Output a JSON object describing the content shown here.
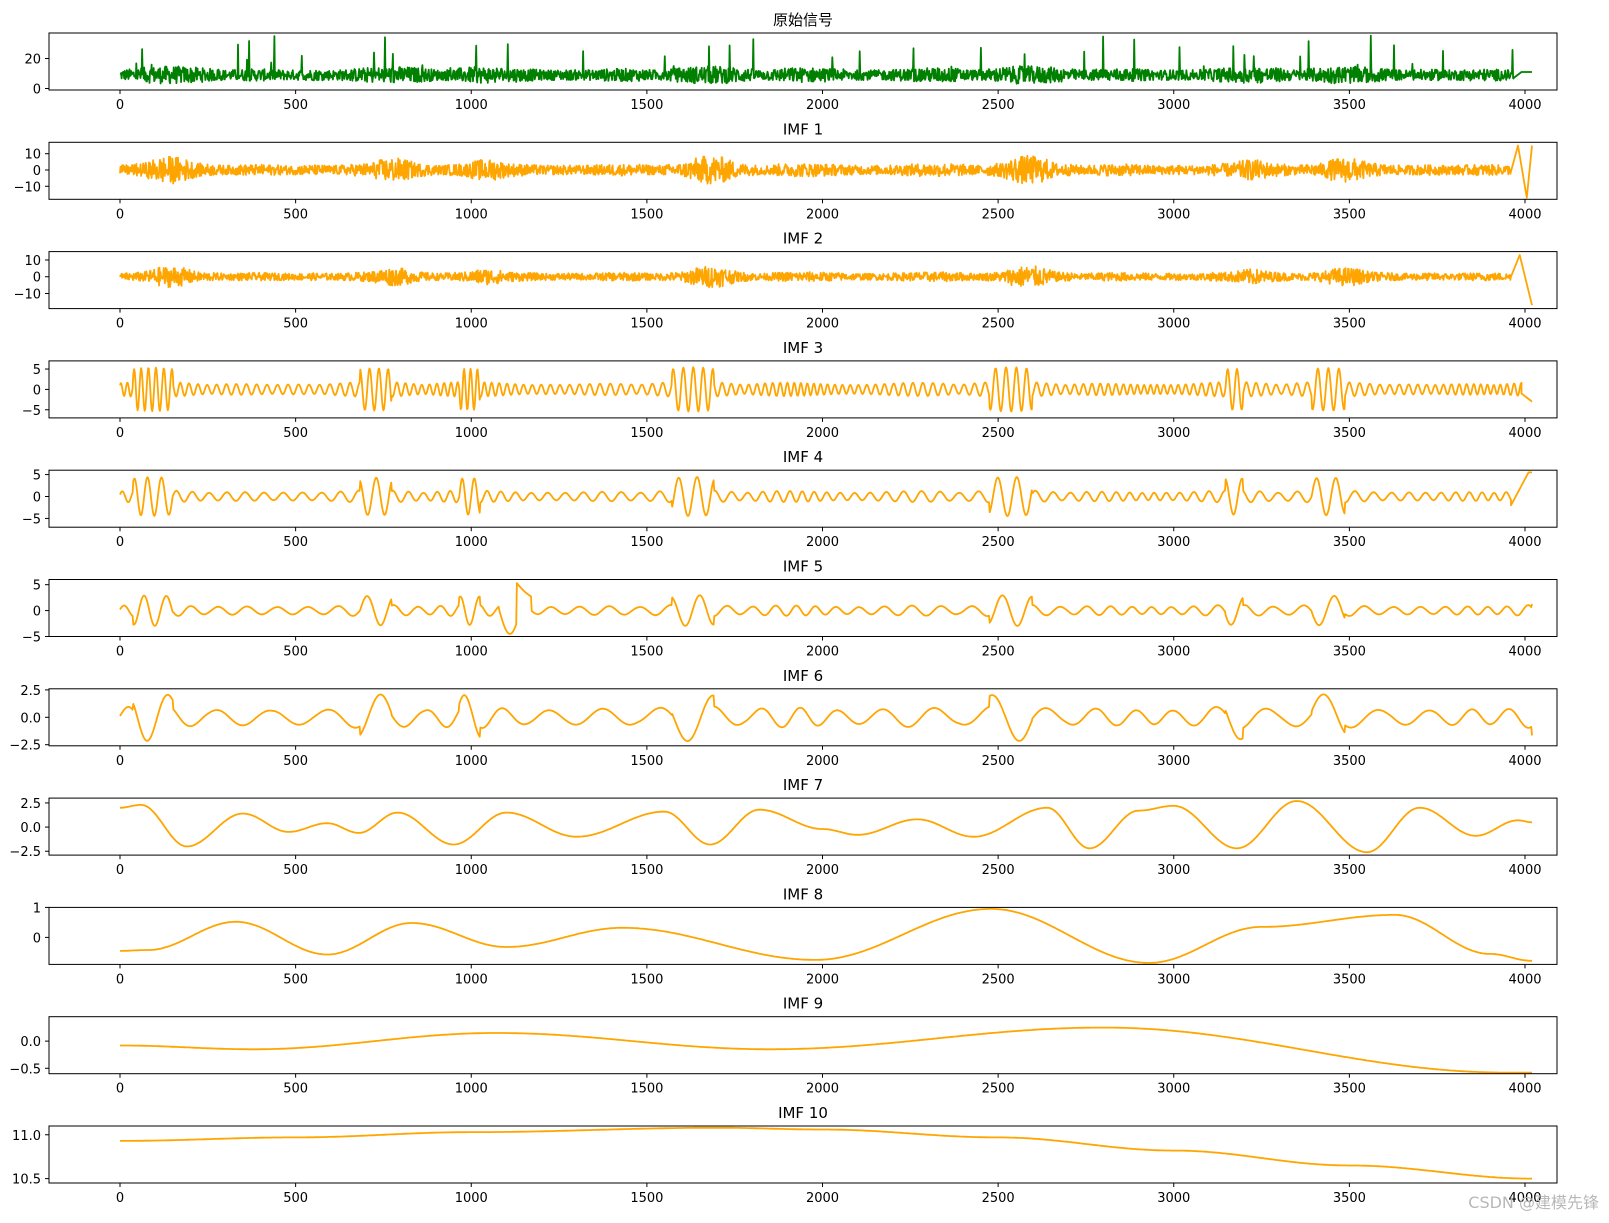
{
  "watermark": "CSDN @建模先锋",
  "chart_data": [
    {
      "type": "line",
      "title": "原始信号",
      "color": "#008000",
      "x_range": [
        0,
        4020
      ],
      "ylim": [
        -1,
        37
      ],
      "yticks": [
        0,
        20
      ],
      "ytick_labels": [
        "0",
        "20"
      ],
      "xticks": [
        0,
        500,
        1000,
        1500,
        2000,
        2500,
        3000,
        3500,
        4000
      ],
      "xtick_labels": [
        "0",
        "500",
        "1000",
        "1500",
        "2000",
        "2500",
        "3000",
        "3500",
        "4000"
      ],
      "kind": "noisy",
      "base": 9,
      "amp": 6,
      "spike_max": 36,
      "min": 2,
      "tail_value": 11
    },
    {
      "type": "line",
      "title": "IMF 1",
      "color": "#FFA500",
      "x_range": [
        0,
        4020
      ],
      "ylim": [
        -18,
        17
      ],
      "yticks": [
        -10,
        0,
        10
      ],
      "ytick_labels": [
        "−10",
        "0",
        "10"
      ],
      "xticks": [
        0,
        500,
        1000,
        1500,
        2000,
        2500,
        3000,
        3500,
        4000
      ],
      "xtick_labels": [
        "0",
        "500",
        "1000",
        "1500",
        "2000",
        "2500",
        "3000",
        "3500",
        "4000"
      ],
      "kind": "hf",
      "amp": 5,
      "burst_amp": 9,
      "tail": [
        [
          3980,
          15
        ],
        [
          4005,
          -17
        ],
        [
          4020,
          15
        ]
      ]
    },
    {
      "type": "line",
      "title": "IMF 2",
      "color": "#FFA500",
      "x_range": [
        0,
        4020
      ],
      "ylim": [
        -19,
        15
      ],
      "yticks": [
        -10,
        0,
        10
      ],
      "ytick_labels": [
        "−10",
        "0",
        "10"
      ],
      "xticks": [
        0,
        500,
        1000,
        1500,
        2000,
        2500,
        3000,
        3500,
        4000
      ],
      "xtick_labels": [
        "0",
        "500",
        "1000",
        "1500",
        "2000",
        "2500",
        "3000",
        "3500",
        "4000"
      ],
      "kind": "hf",
      "amp": 3.5,
      "burst_amp": 7,
      "tail": [
        [
          3960,
          0
        ],
        [
          3985,
          13
        ],
        [
          4020,
          -17
        ]
      ]
    },
    {
      "type": "line",
      "title": "IMF 3",
      "color": "#FFA500",
      "x_range": [
        0,
        4020
      ],
      "ylim": [
        -7,
        7
      ],
      "yticks": [
        -5,
        0,
        5
      ],
      "ytick_labels": [
        "−5",
        "0",
        "5"
      ],
      "xticks": [
        0,
        500,
        1000,
        1500,
        2000,
        2500,
        3000,
        3500,
        4000
      ],
      "xtick_labels": [
        "0",
        "500",
        "1000",
        "1500",
        "2000",
        "2500",
        "3000",
        "3500",
        "4000"
      ],
      "kind": "osc",
      "period": 24,
      "amp": 2,
      "burst_amp": 5.5,
      "tail": [
        [
          3990,
          -1
        ],
        [
          4020,
          -3
        ]
      ]
    },
    {
      "type": "line",
      "title": "IMF 4",
      "color": "#FFA500",
      "x_range": [
        0,
        4020
      ],
      "ylim": [
        -7,
        6
      ],
      "yticks": [
        -5,
        0,
        5
      ],
      "ytick_labels": [
        "−5",
        "0",
        "5"
      ],
      "xticks": [
        0,
        500,
        1000,
        1500,
        2000,
        2500,
        3000,
        3500,
        4000
      ],
      "xtick_labels": [
        "0",
        "500",
        "1000",
        "1500",
        "2000",
        "2500",
        "3000",
        "3500",
        "4000"
      ],
      "kind": "osc",
      "period": 44,
      "amp": 1.5,
      "burst_amp": 4.5,
      "tail": [
        [
          3960,
          -2
        ],
        [
          4010,
          5.5
        ],
        [
          4020,
          5.5
        ]
      ]
    },
    {
      "type": "line",
      "title": "IMF 5",
      "color": "#FFA500",
      "x_range": [
        0,
        4020
      ],
      "ylim": [
        -5,
        6
      ],
      "yticks": [
        -5,
        0,
        5
      ],
      "ytick_labels": [
        "−5",
        "0",
        "5"
      ],
      "xticks": [
        0,
        500,
        1000,
        1500,
        2000,
        2500,
        3000,
        3500,
        4000
      ],
      "xtick_labels": [
        "0",
        "500",
        "1000",
        "1500",
        "2000",
        "2500",
        "3000",
        "3500",
        "4000"
      ],
      "kind": "osc",
      "period": 70,
      "amp": 1.2,
      "burst_amp": 3,
      "event": [
        1100,
        1130,
        -4.5,
        5.3
      ]
    },
    {
      "type": "line",
      "title": "IMF 6",
      "color": "#FFA500",
      "x_range": [
        0,
        4020
      ],
      "ylim": [
        -2.6,
        2.6
      ],
      "yticks": [
        -2.5,
        0,
        2.5
      ],
      "ytick_labels": [
        "−2.5",
        "0.0",
        "2.5"
      ],
      "xticks": [
        0,
        500,
        1000,
        1500,
        2000,
        2500,
        3000,
        3500,
        4000
      ],
      "xtick_labels": [
        "0",
        "500",
        "1000",
        "1500",
        "2000",
        "2500",
        "3000",
        "3500",
        "4000"
      ],
      "kind": "osc",
      "period": 130,
      "amp": 1.1,
      "burst_amp": 2.2
    },
    {
      "type": "line",
      "title": "IMF 7",
      "color": "#FFA500",
      "x_range": [
        0,
        4020
      ],
      "ylim": [
        -2.9,
        3.0
      ],
      "yticks": [
        -2.5,
        0,
        2.5
      ],
      "ytick_labels": [
        "−2.5",
        "0.0",
        "2.5"
      ],
      "xticks": [
        0,
        500,
        1000,
        1500,
        2000,
        2500,
        3000,
        3500,
        4000
      ],
      "xtick_labels": [
        "0",
        "500",
        "1000",
        "1500",
        "2000",
        "2500",
        "3000",
        "3500",
        "4000"
      ],
      "kind": "points",
      "points": [
        [
          0,
          2.0
        ],
        [
          60,
          2.3
        ],
        [
          190,
          -2.0
        ],
        [
          350,
          1.4
        ],
        [
          480,
          -0.5
        ],
        [
          590,
          0.4
        ],
        [
          680,
          -0.6
        ],
        [
          790,
          1.5
        ],
        [
          950,
          -1.8
        ],
        [
          1100,
          1.5
        ],
        [
          1300,
          -1.0
        ],
        [
          1550,
          1.6
        ],
        [
          1680,
          -1.8
        ],
        [
          1820,
          1.8
        ],
        [
          2000,
          -0.2
        ],
        [
          2100,
          -0.8
        ],
        [
          2270,
          0.8
        ],
        [
          2430,
          -1.0
        ],
        [
          2640,
          2.0
        ],
        [
          2760,
          -2.2
        ],
        [
          2900,
          1.7
        ],
        [
          3000,
          2.2
        ],
        [
          3180,
          -2.2
        ],
        [
          3350,
          2.7
        ],
        [
          3550,
          -2.6
        ],
        [
          3700,
          2.0
        ],
        [
          3860,
          -0.9
        ],
        [
          3980,
          0.7
        ],
        [
          4020,
          0.5
        ]
      ]
    },
    {
      "type": "line",
      "title": "IMF 8",
      "color": "#FFA500",
      "x_range": [
        0,
        4020
      ],
      "ylim": [
        -0.9,
        1.0
      ],
      "yticks": [
        0,
        1
      ],
      "ytick_labels": [
        "0",
        "1"
      ],
      "xticks": [
        0,
        500,
        1000,
        1500,
        2000,
        2500,
        3000,
        3500,
        4000
      ],
      "xtick_labels": [
        "0",
        "500",
        "1000",
        "1500",
        "2000",
        "2500",
        "3000",
        "3500",
        "4000"
      ],
      "kind": "points",
      "points": [
        [
          0,
          -0.45
        ],
        [
          80,
          -0.42
        ],
        [
          330,
          0.52
        ],
        [
          590,
          -0.57
        ],
        [
          830,
          0.48
        ],
        [
          1100,
          -0.32
        ],
        [
          1430,
          0.32
        ],
        [
          1980,
          -0.75
        ],
        [
          2480,
          0.95
        ],
        [
          2930,
          -0.85
        ],
        [
          3250,
          0.35
        ],
        [
          3630,
          0.75
        ],
        [
          3900,
          -0.55
        ],
        [
          4020,
          -0.78
        ]
      ]
    },
    {
      "type": "line",
      "title": "IMF 9",
      "color": "#FFA500",
      "x_range": [
        0,
        4020
      ],
      "ylim": [
        -0.6,
        0.45
      ],
      "yticks": [
        -0.5,
        0
      ],
      "ytick_labels": [
        "−0.5",
        "0.0"
      ],
      "xticks": [
        0,
        500,
        1000,
        1500,
        2000,
        2500,
        3000,
        3500,
        4000
      ],
      "xtick_labels": [
        "0",
        "500",
        "1000",
        "1500",
        "2000",
        "2500",
        "3000",
        "3500",
        "4000"
      ],
      "kind": "points",
      "points": [
        [
          0,
          -0.08
        ],
        [
          380,
          -0.15
        ],
        [
          1070,
          0.15
        ],
        [
          1850,
          -0.15
        ],
        [
          2800,
          0.25
        ],
        [
          3950,
          -0.58
        ],
        [
          4020,
          -0.58
        ]
      ]
    },
    {
      "type": "line",
      "title": "IMF 10",
      "color": "#FFA500",
      "x_range": [
        0,
        4020
      ],
      "ylim": [
        10.45,
        11.1
      ],
      "yticks": [
        10.5,
        11.0
      ],
      "ytick_labels": [
        "10.5",
        "11.0"
      ],
      "xticks": [
        0,
        500,
        1000,
        1500,
        2000,
        2500,
        3000,
        3500,
        4000
      ],
      "xtick_labels": [
        "0",
        "500",
        "1000",
        "1500",
        "2000",
        "2500",
        "3000",
        "3500",
        "4000"
      ],
      "kind": "points",
      "points": [
        [
          0,
          10.93
        ],
        [
          500,
          10.97
        ],
        [
          1000,
          11.03
        ],
        [
          1700,
          11.08
        ],
        [
          2000,
          11.06
        ],
        [
          2500,
          10.97
        ],
        [
          3000,
          10.82
        ],
        [
          3500,
          10.65
        ],
        [
          4020,
          10.5
        ]
      ]
    }
  ]
}
